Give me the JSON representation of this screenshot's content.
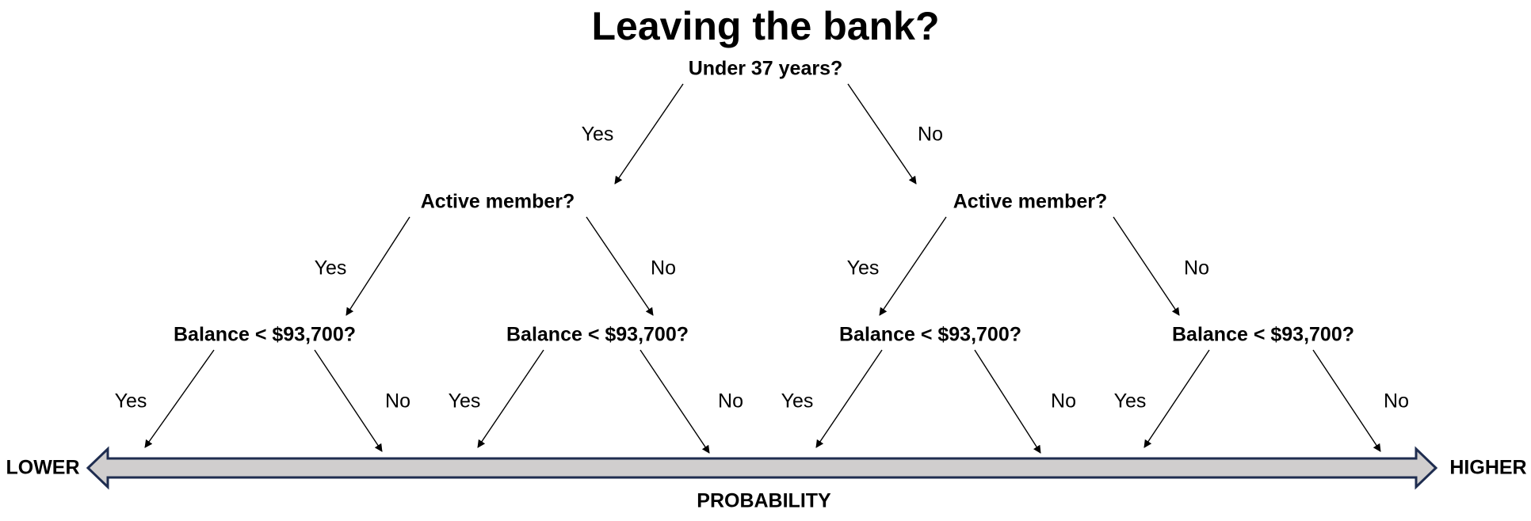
{
  "title": "Leaving the bank?",
  "root": {
    "question": "Under 37 years?",
    "yes_label": "Yes",
    "no_label": "No"
  },
  "level2": [
    {
      "question": "Active member?",
      "yes_label": "Yes",
      "no_label": "No"
    },
    {
      "question": "Active member?",
      "yes_label": "Yes",
      "no_label": "No"
    }
  ],
  "level3": [
    {
      "question": "Balance < $93,700?",
      "yes_label": "Yes",
      "no_label": "No"
    },
    {
      "question": "Balance < $93,700?",
      "yes_label": "Yes",
      "no_label": "No"
    },
    {
      "question": "Balance < $93,700?",
      "yes_label": "Yes",
      "no_label": "No"
    },
    {
      "question": "Balance < $93,700?",
      "yes_label": "Yes",
      "no_label": "No"
    }
  ],
  "scale": {
    "left_label": "LOWER",
    "right_label": "HIGHER",
    "axis_label": "PROBABILITY",
    "bar_fill": "#d0cece",
    "bar_stroke": "#1f2d50"
  }
}
